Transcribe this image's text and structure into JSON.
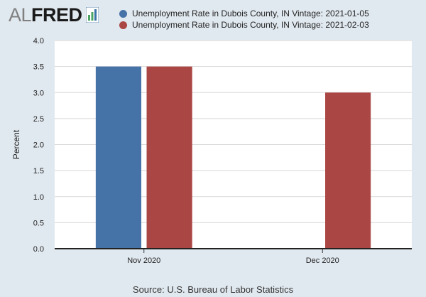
{
  "logo": {
    "al": "AL",
    "fred": "FRED",
    "icon": "fred-bar-chart-icon"
  },
  "colors": {
    "series1": "#4572a7",
    "series2": "#aa4643",
    "plot_bg": "#ffffff",
    "grid": "#d8d8d8",
    "page_bg": "#e1e9f0"
  },
  "chart_data": {
    "type": "bar",
    "title": "",
    "categories": [
      "Nov 2020",
      "Dec 2020"
    ],
    "series": [
      {
        "name": "Unemployment Rate in Dubois County, IN Vintage: 2021-01-05",
        "values": [
          3.5,
          null
        ]
      },
      {
        "name": "Unemployment Rate in Dubois County, IN Vintage: 2021-02-03",
        "values": [
          3.5,
          3.0
        ]
      }
    ],
    "xlabel": "",
    "ylabel": "Percent",
    "ylim": [
      0,
      4.0
    ],
    "yticks": [
      "0.0",
      "0.5",
      "1.0",
      "1.5",
      "2.0",
      "2.5",
      "3.0",
      "3.5",
      "4.0"
    ],
    "grid": true,
    "legend_position": "top"
  },
  "source": "Source: U.S. Bureau of Labor Statistics"
}
